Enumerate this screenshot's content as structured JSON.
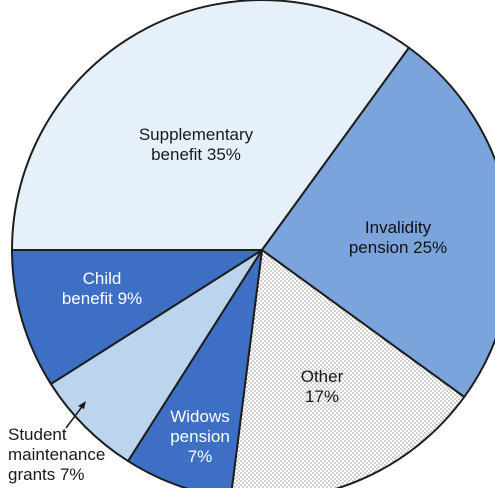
{
  "chart_data": {
    "type": "pie",
    "title": "",
    "slices": [
      {
        "name": "Supplementary benefit",
        "value": 35,
        "label_lines": [
          "Supplementary",
          "benefit 35%"
        ],
        "fill": "#e6f0fa",
        "text_color": "#1a1a1a",
        "pattern": "none"
      },
      {
        "name": "Invalidity pension",
        "value": 25,
        "label_lines": [
          "Invalidity",
          "pension 25%"
        ],
        "fill": "#7ba3dc",
        "text_color": "#111111",
        "pattern": "none"
      },
      {
        "name": "Other",
        "value": 17,
        "label_lines": [
          "Other",
          "17%"
        ],
        "fill": "#ffffff",
        "text_color": "#1a1a1a",
        "pattern": "dots"
      },
      {
        "name": "Widows pension",
        "value": 7,
        "label_lines": [
          "Widows",
          "pension",
          "7%"
        ],
        "fill": "#3d6fc5",
        "text_color": "#ffffff",
        "pattern": "none"
      },
      {
        "name": "Student maintenance grants",
        "value": 7,
        "label_lines": [
          "Student",
          "maintenance",
          "grants 7%"
        ],
        "fill": "#bcd5ef",
        "text_color": "#1a1a1a",
        "pattern": "none"
      },
      {
        "name": "Child benefit",
        "value": 9,
        "label_lines": [
          "Child",
          "benefit 9%"
        ],
        "fill": "#3d6fc5",
        "text_color": "#ffffff",
        "pattern": "none"
      }
    ],
    "colors": {
      "outline": "#1e1e1e",
      "dot_color": "#8a8a8a",
      "background": "#ffffff"
    }
  }
}
